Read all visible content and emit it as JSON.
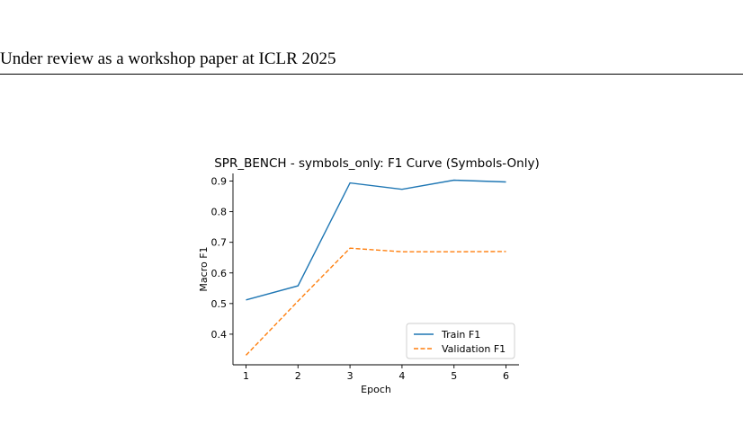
{
  "header": {
    "text": "Under review as a workshop paper at ICLR 2025"
  },
  "chart_data": {
    "type": "line",
    "title": "SPR_BENCH - symbols_only: F1 Curve (Symbols-Only)",
    "xlabel": "Epoch",
    "ylabel": "Macro F1",
    "x": [
      1,
      2,
      3,
      4,
      5,
      6
    ],
    "xticks": [
      1,
      2,
      3,
      4,
      5,
      6
    ],
    "yticks": [
      0.4,
      0.5,
      0.6,
      0.7,
      0.8,
      0.9
    ],
    "ylim": [
      0.3,
      0.925
    ],
    "xlim": [
      0.75,
      6.25
    ],
    "grid": false,
    "legend": "bottom-right",
    "series": [
      {
        "name": "Train F1",
        "values": [
          0.512,
          0.558,
          0.894,
          0.873,
          0.903,
          0.897
        ],
        "color": "#1f77b4",
        "dash": "solid"
      },
      {
        "name": "Validation F1",
        "values": [
          0.331,
          0.508,
          0.681,
          0.669,
          0.669,
          0.67
        ],
        "color": "#ff7f0e",
        "dash": "dashed"
      }
    ]
  }
}
